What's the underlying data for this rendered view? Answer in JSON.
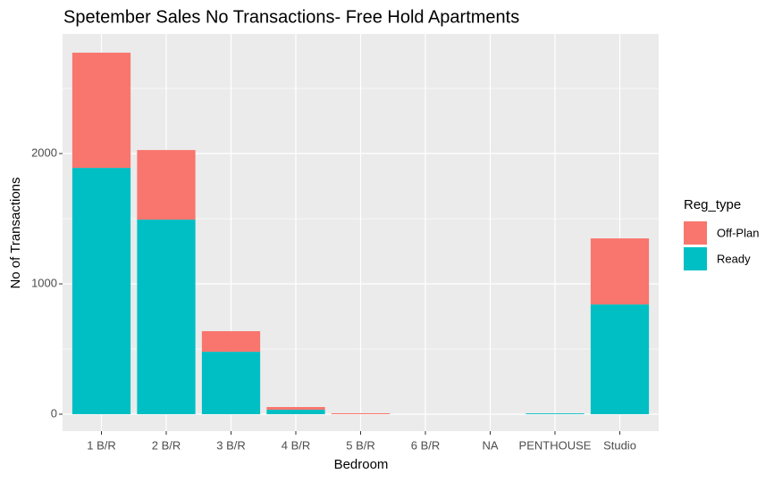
{
  "chart_data": {
    "type": "stacked_bar",
    "title": "Spetember Sales No Transactions- Free Hold Apartments",
    "x_label": "Bedroom",
    "y_label": "No of Transactions",
    "categories": [
      "1 B/R",
      "2 B/R",
      "3 B/R",
      "4 B/R",
      "5 B/R",
      "6 B/R",
      "NA",
      "PENTHOUSE",
      "Studio"
    ],
    "series": [
      {
        "name": "Ready",
        "color": "#00BFC4",
        "values": [
          1890,
          1493,
          479,
          34,
          0,
          0,
          0,
          6,
          842
        ]
      },
      {
        "name": "Off-Plan",
        "color": "#F8766D",
        "values": [
          884,
          534,
          158,
          21,
          7,
          0,
          0,
          0,
          507
        ]
      }
    ],
    "legend_title": "Reg_type",
    "legend_order": [
      1,
      0
    ],
    "ylim": [
      -130,
      2918
    ],
    "yticks": [
      0,
      1000,
      2000
    ],
    "minor_yticks": [
      500,
      1500,
      2500
    ],
    "grid": true,
    "legend_position": "right"
  }
}
